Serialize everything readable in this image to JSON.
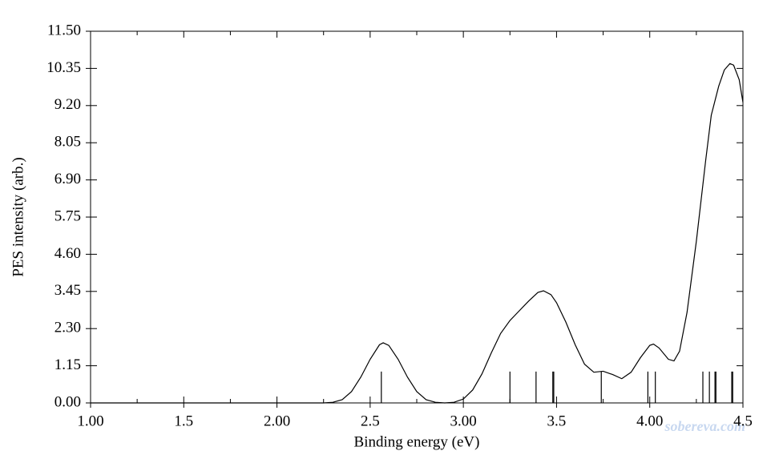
{
  "chart_data": {
    "type": "line",
    "xlabel": "Binding energy (eV)",
    "ylabel": "PES intensity (arb.)",
    "watermark": "sobereva.com",
    "x": [
      1.0,
      2.25,
      2.3,
      2.35,
      2.4,
      2.45,
      2.5,
      2.55,
      2.57,
      2.6,
      2.65,
      2.7,
      2.75,
      2.8,
      2.85,
      2.9,
      2.95,
      3.0,
      3.05,
      3.1,
      3.15,
      3.2,
      3.25,
      3.3,
      3.35,
      3.4,
      3.43,
      3.47,
      3.5,
      3.55,
      3.6,
      3.65,
      3.7,
      3.75,
      3.8,
      3.85,
      3.9,
      3.95,
      4.0,
      4.02,
      4.05,
      4.1,
      4.13,
      4.16,
      4.2,
      4.25,
      4.3,
      4.33,
      4.37,
      4.4,
      4.43,
      4.45,
      4.48,
      4.5
    ],
    "values": [
      0,
      0,
      0.02,
      0.1,
      0.35,
      0.8,
      1.35,
      1.8,
      1.86,
      1.78,
      1.35,
      0.8,
      0.35,
      0.1,
      0.02,
      0,
      0.02,
      0.12,
      0.4,
      0.9,
      1.55,
      2.15,
      2.55,
      2.85,
      3.15,
      3.42,
      3.47,
      3.35,
      3.1,
      2.5,
      1.8,
      1.2,
      0.95,
      0.98,
      0.88,
      0.75,
      0.95,
      1.4,
      1.78,
      1.82,
      1.7,
      1.35,
      1.3,
      1.6,
      2.8,
      5.0,
      7.5,
      8.9,
      9.8,
      10.3,
      10.5,
      10.45,
      10.0,
      9.3
    ],
    "color": "#000000",
    "sticks": {
      "x": [
        2.56,
        3.25,
        3.39,
        3.48,
        3.485,
        3.74,
        3.99,
        4.03,
        4.285,
        4.32,
        4.35,
        4.355,
        4.44,
        4.445
      ],
      "values": [
        0.97,
        0.97,
        0.97,
        0.97,
        0.97,
        0.97,
        0.97,
        0.97,
        0.97,
        0.97,
        0.97,
        0.97,
        0.97,
        0.97
      ]
    },
    "xlim": [
      1.0,
      4.5
    ],
    "xticks": [
      {
        "value": 1.0,
        "label": "1.00"
      },
      1.5,
      {
        "value": 2.0,
        "label": "2.00"
      },
      2.5,
      {
        "value": 3.0,
        "label": "3.00"
      },
      3.5,
      {
        "value": 4.0,
        "label": "4.00"
      },
      4.5
    ],
    "xminorticks": [
      1.25,
      1.75,
      2.25,
      2.75,
      3.25,
      3.75,
      4.25
    ],
    "ylim": [
      0,
      11.5
    ],
    "yticks": [
      {
        "value": 0,
        "label": "0.00"
      },
      1.15,
      {
        "value": 2.3,
        "label": "2.30"
      },
      3.45,
      {
        "value": 4.6,
        "label": "4.60"
      },
      5.75,
      {
        "value": 6.9,
        "label": "6.90"
      },
      8.05,
      {
        "value": 9.2,
        "label": "9.20"
      },
      10.35,
      {
        "value": 11.5,
        "label": "11.50"
      }
    ]
  }
}
